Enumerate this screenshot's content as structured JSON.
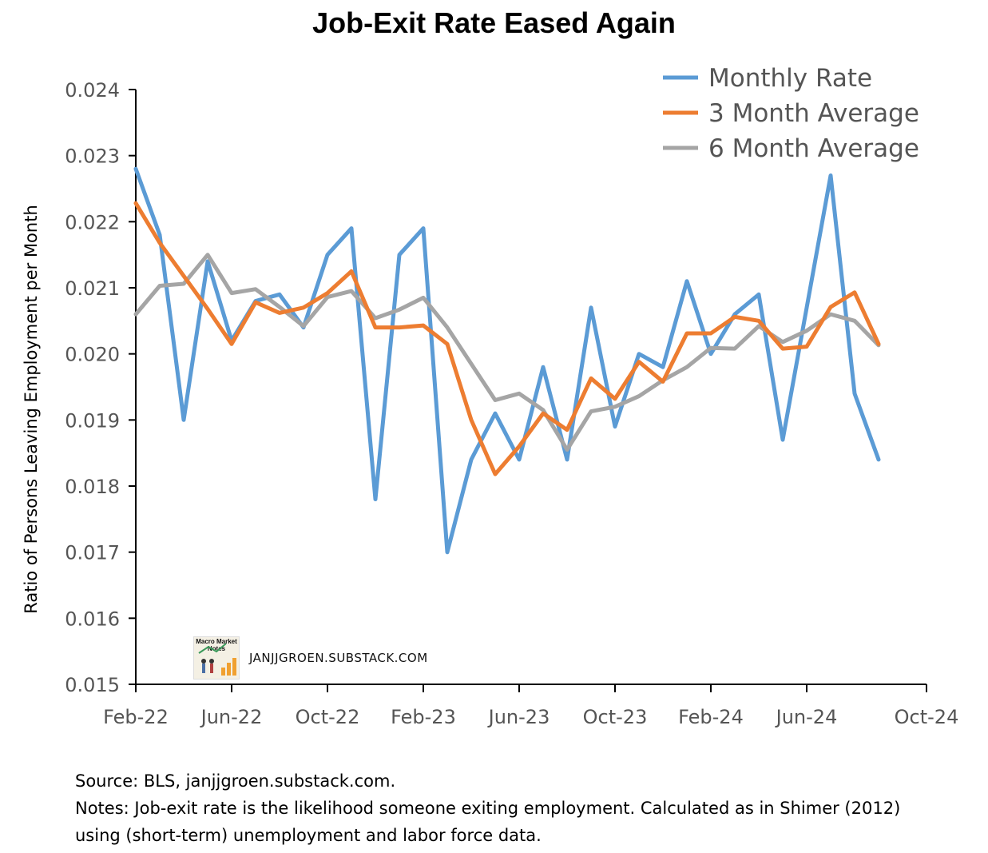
{
  "chart_data": {
    "type": "line",
    "title": "Job-Exit Rate Eased Again",
    "ylabel": "Ratio of Persons Leaving Employment per Month",
    "xlabel": "",
    "x": [
      "Feb-22",
      "Mar-22",
      "Apr-22",
      "May-22",
      "Jun-22",
      "Jul-22",
      "Aug-22",
      "Sep-22",
      "Oct-22",
      "Nov-22",
      "Dec-22",
      "Jan-23",
      "Feb-23",
      "Mar-23",
      "Apr-23",
      "May-23",
      "Jun-23",
      "Jul-23",
      "Aug-23",
      "Sep-23",
      "Oct-23",
      "Nov-23",
      "Dec-23",
      "Jan-24",
      "Feb-24",
      "Mar-24",
      "Apr-24",
      "May-24",
      "Jun-24",
      "Jul-24",
      "Aug-24",
      "Sep-24"
    ],
    "x_ticks": [
      "Feb-22",
      "Jun-22",
      "Oct-22",
      "Feb-23",
      "Jun-23",
      "Oct-23",
      "Feb-24",
      "Jun-24",
      "Oct-24"
    ],
    "y_ticks": [
      "0.015",
      "0.016",
      "0.017",
      "0.018",
      "0.019",
      "0.020",
      "0.021",
      "0.022",
      "0.023",
      "0.024"
    ],
    "ylim": [
      0.015,
      0.024
    ],
    "grid": false,
    "legend_position": "top-right",
    "series": [
      {
        "name": "Monthly Rate",
        "color": "#5b9bd5",
        "values": [
          0.0228,
          0.0218,
          0.019,
          0.0214,
          0.0202,
          0.0208,
          0.0209,
          0.0204,
          0.0215,
          0.0219,
          0.0178,
          0.0215,
          0.0219,
          0.017,
          0.0184,
          0.0191,
          0.0184,
          0.0198,
          0.0184,
          0.0207,
          0.0189,
          0.02,
          0.0198,
          0.0211,
          0.02,
          0.0206,
          0.0209,
          0.0187,
          0.0207,
          0.0227,
          0.0194,
          0.0184
        ]
      },
      {
        "name": "3 Month Average",
        "color": "#ed7d31",
        "values": [
          0.02228,
          0.02168,
          0.02118,
          0.02068,
          0.02015,
          0.02078,
          0.02062,
          0.0207,
          0.02092,
          0.02125,
          0.0204,
          0.0204,
          0.02043,
          0.02015,
          0.019,
          0.01818,
          0.0186,
          0.0191,
          0.01885,
          0.01963,
          0.01932,
          0.01988,
          0.01958,
          0.02031,
          0.02031,
          0.02056,
          0.0205,
          0.02008,
          0.02011,
          0.02071,
          0.02093,
          0.02015
        ]
      },
      {
        "name": "6 Month Average",
        "color": "#a5a5a5",
        "values": [
          0.0206,
          0.02103,
          0.02106,
          0.0215,
          0.02092,
          0.02098,
          0.02071,
          0.02042,
          0.02086,
          0.02095,
          0.02054,
          0.02067,
          0.02085,
          0.0204,
          0.01985,
          0.0193,
          0.0194,
          0.01915,
          0.01855,
          0.01913,
          0.0192,
          0.01936,
          0.0196,
          0.0198,
          0.02009,
          0.02008,
          0.02042,
          0.02018,
          0.02035,
          0.0206,
          0.0205,
          0.02013
        ]
      }
    ],
    "watermark": {
      "logo_text": "Macro Market Notes",
      "text": "JANJJGROEN.SUBSTACK.COM"
    }
  },
  "notes": {
    "source": "Source: BLS, janjjgroen.substack.com.",
    "line1": "Notes: Job-exit rate is the likelihood someone exiting employment. Calculated as in Shimer (2012)",
    "line2": "using (short-term) unemployment and labor force data."
  }
}
